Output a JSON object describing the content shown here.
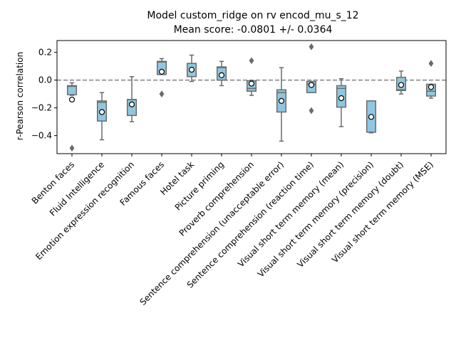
{
  "chart_data": {
    "type": "box",
    "title_line1": "Model custom_ridge on rv encod_mu_s_12",
    "title_line2": "Mean score: -0.0801 +/- 0.0364",
    "xlabel": "",
    "ylabel": "r-Pearson correlation",
    "ylim": [
      -0.53,
      0.285
    ],
    "yticks": [
      0.2,
      0.0,
      -0.2,
      -0.4
    ],
    "ytick_labels": [
      "0.2",
      "0.0",
      "−0.2",
      "−0.4"
    ],
    "reference_line": 0.0,
    "grid": false,
    "colors": {
      "box_fill": "#8ec7e0",
      "box_edge": "#6b6b6b",
      "reference_line": "#808080",
      "mean_marker_fill": "#ffffff",
      "mean_marker_edge": "#000000",
      "outlier": "#6b6b6b"
    },
    "categories": [
      "Benton faces",
      "Fluid Intelligence",
      "Emotion expression recognition",
      "Famous faces",
      "Hotel task",
      "Picture priming",
      "Proverb comprehension",
      "Sentence comprehension (unacceptable error)",
      "Sentence comprehension (reaction time)",
      "Visual short term memory (mean)",
      "Visual short term memory (precision)",
      "Visual short term memory (doubt)",
      "Visual short term memory (MSE)"
    ],
    "boxes": [
      {
        "whislo": -0.11,
        "q1": -0.105,
        "median": -0.045,
        "q3": -0.04,
        "whishi": -0.02,
        "mean": -0.14,
        "fliers": [
          -0.49
        ]
      },
      {
        "whislo": -0.43,
        "q1": -0.295,
        "median": -0.16,
        "q3": -0.15,
        "whishi": -0.09,
        "mean": -0.23,
        "fliers": []
      },
      {
        "whislo": -0.3,
        "q1": -0.255,
        "median": -0.14,
        "q3": -0.14,
        "whishi": 0.025,
        "mean": -0.175,
        "fliers": []
      },
      {
        "whislo": 0.04,
        "q1": 0.04,
        "median": 0.13,
        "q3": 0.135,
        "whishi": 0.155,
        "mean": 0.06,
        "fliers": [
          -0.1
        ]
      },
      {
        "whislo": -0.01,
        "q1": 0.025,
        "median": 0.12,
        "q3": 0.12,
        "whishi": 0.18,
        "mean": 0.075,
        "fliers": []
      },
      {
        "whislo": -0.04,
        "q1": 0.0,
        "median": 0.09,
        "q3": 0.095,
        "whishi": 0.135,
        "mean": 0.035,
        "fliers": []
      },
      {
        "whislo": -0.11,
        "q1": -0.08,
        "median": -0.06,
        "q3": -0.005,
        "whishi": -0.005,
        "mean": -0.025,
        "fliers": [
          0.14
        ]
      },
      {
        "whislo": -0.44,
        "q1": -0.23,
        "median": -0.09,
        "q3": -0.07,
        "whishi": 0.09,
        "mean": -0.15,
        "fliers": []
      },
      {
        "whislo": -0.09,
        "q1": -0.09,
        "median": -0.03,
        "q3": -0.01,
        "whishi": -0.01,
        "mean": -0.035,
        "fliers": [
          0.24,
          -0.22
        ]
      },
      {
        "whislo": -0.335,
        "q1": -0.195,
        "median": -0.06,
        "q3": -0.04,
        "whishi": 0.01,
        "mean": -0.13,
        "fliers": []
      },
      {
        "whislo": -0.38,
        "q1": -0.375,
        "median": -0.375,
        "q3": -0.15,
        "whishi": -0.15,
        "mean": -0.265,
        "fliers": []
      },
      {
        "whislo": -0.1,
        "q1": -0.075,
        "median": -0.07,
        "q3": 0.02,
        "whishi": 0.065,
        "mean": -0.035,
        "fliers": []
      },
      {
        "whislo": -0.13,
        "q1": -0.115,
        "median": -0.08,
        "q3": -0.03,
        "whishi": -0.03,
        "mean": -0.05,
        "fliers": [
          0.12
        ]
      }
    ]
  }
}
